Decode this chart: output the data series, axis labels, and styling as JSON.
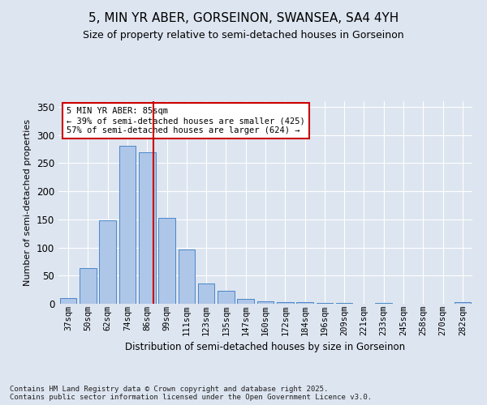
{
  "title1": "5, MIN YR ABER, GORSEINON, SWANSEA, SA4 4YH",
  "title2": "Size of property relative to semi-detached houses in Gorseinon",
  "xlabel": "Distribution of semi-detached houses by size in Gorseinon",
  "ylabel": "Number of semi-detached properties",
  "footnote": "Contains HM Land Registry data © Crown copyright and database right 2025.\nContains public sector information licensed under the Open Government Licence v3.0.",
  "categories": [
    "37sqm",
    "50sqm",
    "62sqm",
    "74sqm",
    "86sqm",
    "99sqm",
    "111sqm",
    "123sqm",
    "135sqm",
    "147sqm",
    "160sqm",
    "172sqm",
    "184sqm",
    "196sqm",
    "209sqm",
    "221sqm",
    "233sqm",
    "245sqm",
    "258sqm",
    "270sqm",
    "282sqm"
  ],
  "values": [
    10,
    63,
    148,
    281,
    270,
    152,
    96,
    36,
    23,
    8,
    4,
    3,
    3,
    2,
    1,
    0,
    2,
    0,
    0,
    0,
    3
  ],
  "bar_color": "#aec6e8",
  "bar_edge_color": "#4a86c8",
  "vline_color": "#cc0000",
  "vline_x_index": 4,
  "annotation_text": "5 MIN YR ABER: 85sqm\n← 39% of semi-detached houses are smaller (425)\n57% of semi-detached houses are larger (624) →",
  "annotation_box_color": "#ffffff",
  "annotation_box_edge": "#cc0000",
  "ylim": [
    0,
    360
  ],
  "yticks": [
    0,
    50,
    100,
    150,
    200,
    250,
    300,
    350
  ],
  "bg_color": "#dde5f0",
  "plot_bg_color": "#dde5f0",
  "grid_color": "#ffffff",
  "title1_fontsize": 11,
  "title2_fontsize": 9,
  "ylabel_fontsize": 8,
  "xlabel_fontsize": 8.5,
  "tick_fontsize": 7.5,
  "footnote_fontsize": 6.5
}
